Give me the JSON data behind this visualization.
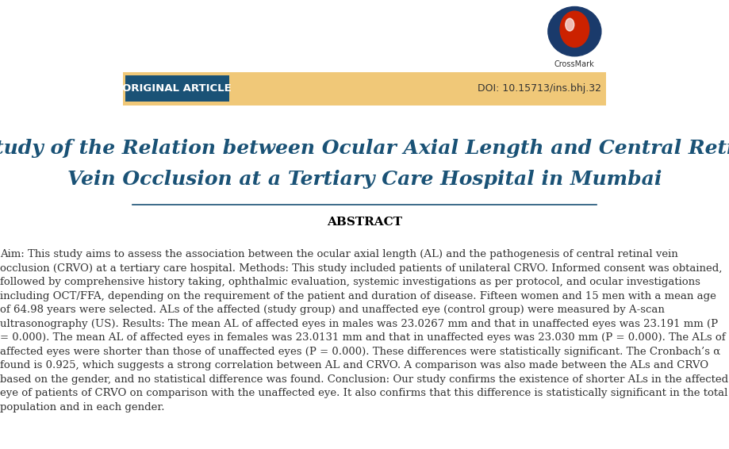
{
  "bg_color": "#ffffff",
  "header_bar_color": "#f0c878",
  "header_text": "ORIGINAL ARTICLE",
  "header_text_color": "#ffffff",
  "header_bg_color": "#1a5276",
  "doi_text": "DOI: 10.15713/ins.bhj.32",
  "doi_color": "#333333",
  "title_line1": "A Study of the Relation between Ocular Axial Length and Central Retinal",
  "title_line2": "Vein Occlusion at a Tertiary Care Hospital in Mumbai",
  "title_color": "#1a5276",
  "title_fontsize": 18,
  "abstract_header": "ABSTRACT",
  "abstract_header_color": "#000000",
  "separator_color": "#1a5276",
  "abstract_text_color": "#333333",
  "abstract_fontsize": 9.5,
  "abstract_paragraph": "Aim: This study aims to assess the association between the ocular axial length (AL) and the pathogenesis of central retinal vein occlusion (CRVO) at a tertiary care hospital. Methods: This study included patients of unilateral CRVO. Informed consent was obtained, followed by comprehensive history taking, ophthalmic evaluation, systemic investigations as per protocol, and ocular investigations including OCT/FFA, depending on the requirement of the patient and duration of disease. Fifteen women and 15 men with a mean age of 64.98 years were selected. ALs of the affected (study group) and unaffected eye (control group) were measured by A-scan ultrasonography (US). Results: The mean AL of affected eyes in males was 23.0267 mm and that in unaffected eyes was 23.191 mm (P = 0.000). The mean AL of affected eyes in females was 23.0131 mm and that in unaffected eyes was 23.030 mm (P = 0.000). The ALs of affected eyes were shorter than those of unaffected eyes (P = 0.000). These differences were statistically significant. The Cronbach’s α found is 0.925, which suggests a strong correlation between AL and CRVO. A comparison was also made between the ALs and CRVO based on the gender, and no statistical difference was found. Conclusion: Our study confirms the existence of shorter ALs in the affected eye of patients of CRVO on comparison with the unaffected eye. It also confirms that this difference is statistically significant in the total population and in each gender.",
  "bold_words": [
    "Aim:",
    "Methods:",
    "Results:",
    "Conclusion:"
  ],
  "figure_width": 9.19,
  "figure_height": 5.66
}
